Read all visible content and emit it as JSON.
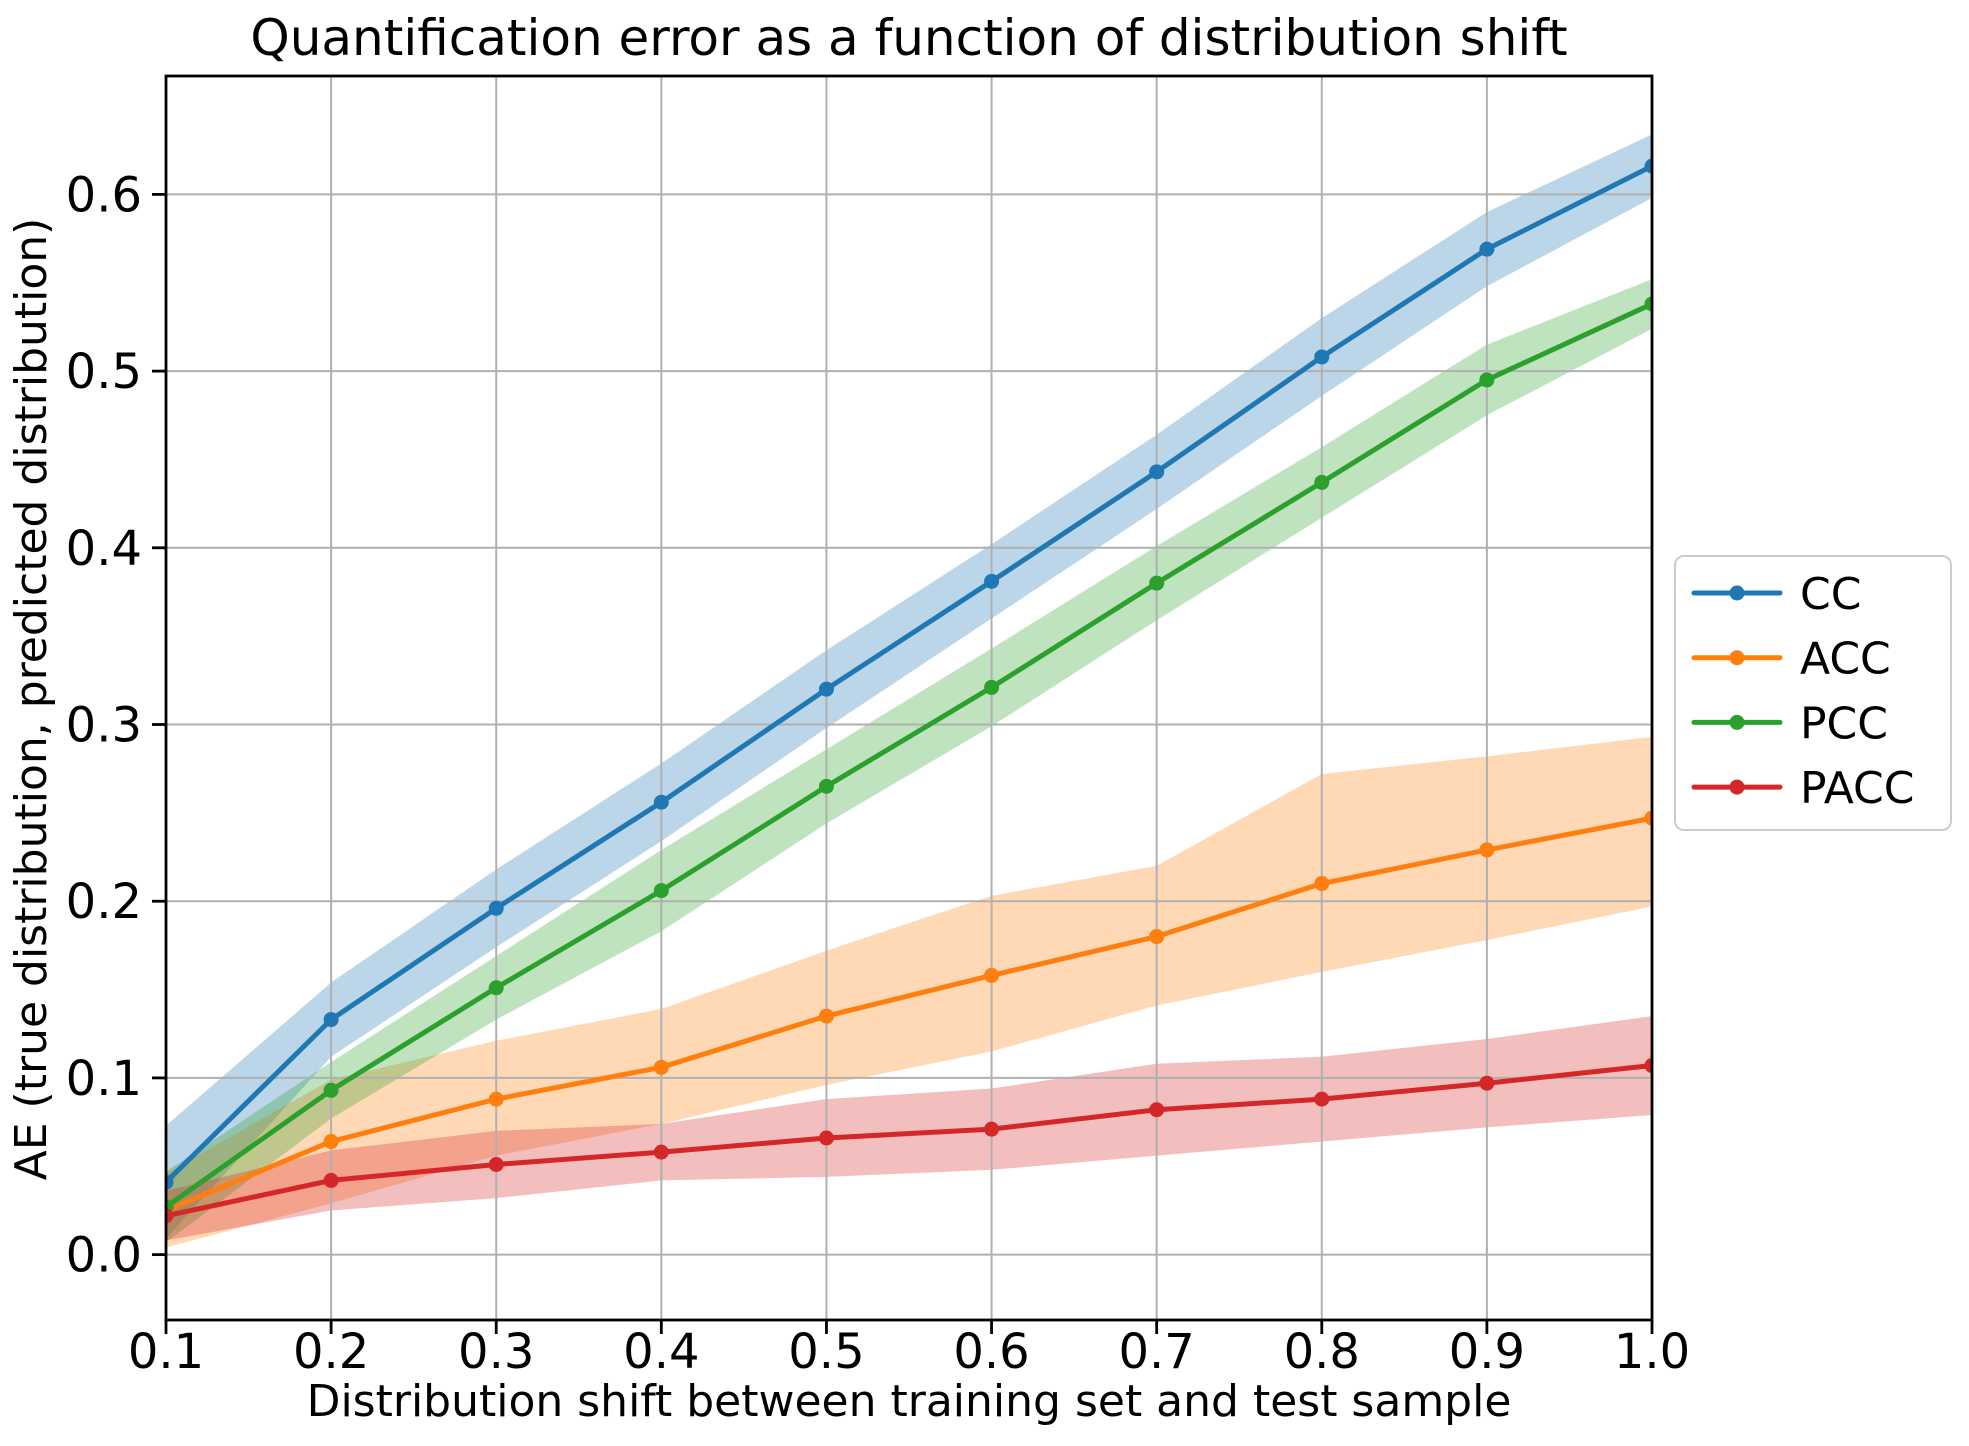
{
  "colors": {
    "grid": "#b0b0b0",
    "spine": "#000000",
    "legend_border": "#cccccc",
    "background": "#ffffff"
  },
  "chart_data": {
    "type": "line",
    "title": "Quantification error as a function of distribution shift",
    "xlabel": "Distribution shift between training set and test sample",
    "ylabel": "AE (true distribution, predicted distribution)",
    "grid": true,
    "legend_position": "outside-right",
    "xlim": [
      0.1,
      1.0
    ],
    "ylim": [
      -0.037,
      0.667
    ],
    "x": [
      0.1,
      0.2,
      0.3,
      0.4,
      0.5,
      0.6,
      0.7,
      0.8,
      0.9,
      1.0
    ],
    "x_tick_labels": [
      "0.1",
      "0.2",
      "0.3",
      "0.4",
      "0.5",
      "0.6",
      "0.7",
      "0.8",
      "0.9",
      "1.0"
    ],
    "y_ticks": [
      0.0,
      0.1,
      0.2,
      0.3,
      0.4,
      0.5,
      0.6
    ],
    "y_tick_labels": [
      "0.0",
      "0.1",
      "0.2",
      "0.3",
      "0.4",
      "0.5",
      "0.6"
    ],
    "band_alpha": 0.3,
    "series": [
      {
        "name": "CC",
        "color": "#1f77b4",
        "values": [
          0.041,
          0.133,
          0.196,
          0.256,
          0.32,
          0.381,
          0.443,
          0.508,
          0.569,
          0.616
        ],
        "band_lower": [
          0.009,
          0.112,
          0.174,
          0.234,
          0.298,
          0.36,
          0.422,
          0.486,
          0.548,
          0.598
        ],
        "band_upper": [
          0.073,
          0.154,
          0.218,
          0.278,
          0.342,
          0.402,
          0.464,
          0.53,
          0.59,
          0.634
        ]
      },
      {
        "name": "ACC",
        "color": "#ff7f0e",
        "values": [
          0.025,
          0.064,
          0.088,
          0.106,
          0.135,
          0.158,
          0.18,
          0.21,
          0.229,
          0.247
        ],
        "band_lower": [
          0.004,
          0.029,
          0.056,
          0.074,
          0.096,
          0.115,
          0.141,
          0.16,
          0.178,
          0.197
        ],
        "band_upper": [
          0.046,
          0.099,
          0.121,
          0.139,
          0.172,
          0.203,
          0.22,
          0.272,
          0.282,
          0.293
        ]
      },
      {
        "name": "PCC",
        "color": "#2ca02c",
        "values": [
          0.027,
          0.093,
          0.151,
          0.206,
          0.265,
          0.321,
          0.38,
          0.437,
          0.495,
          0.538
        ],
        "band_lower": [
          0.007,
          0.077,
          0.133,
          0.183,
          0.244,
          0.299,
          0.359,
          0.417,
          0.475,
          0.524
        ],
        "band_upper": [
          0.047,
          0.109,
          0.169,
          0.229,
          0.286,
          0.343,
          0.401,
          0.457,
          0.515,
          0.552
        ]
      },
      {
        "name": "PACC",
        "color": "#d62728",
        "values": [
          0.022,
          0.042,
          0.051,
          0.058,
          0.066,
          0.071,
          0.082,
          0.088,
          0.097,
          0.107
        ],
        "band_lower": [
          0.008,
          0.025,
          0.032,
          0.042,
          0.044,
          0.048,
          0.056,
          0.064,
          0.072,
          0.079
        ],
        "band_upper": [
          0.036,
          0.059,
          0.07,
          0.074,
          0.088,
          0.094,
          0.108,
          0.112,
          0.122,
          0.135
        ]
      }
    ]
  }
}
